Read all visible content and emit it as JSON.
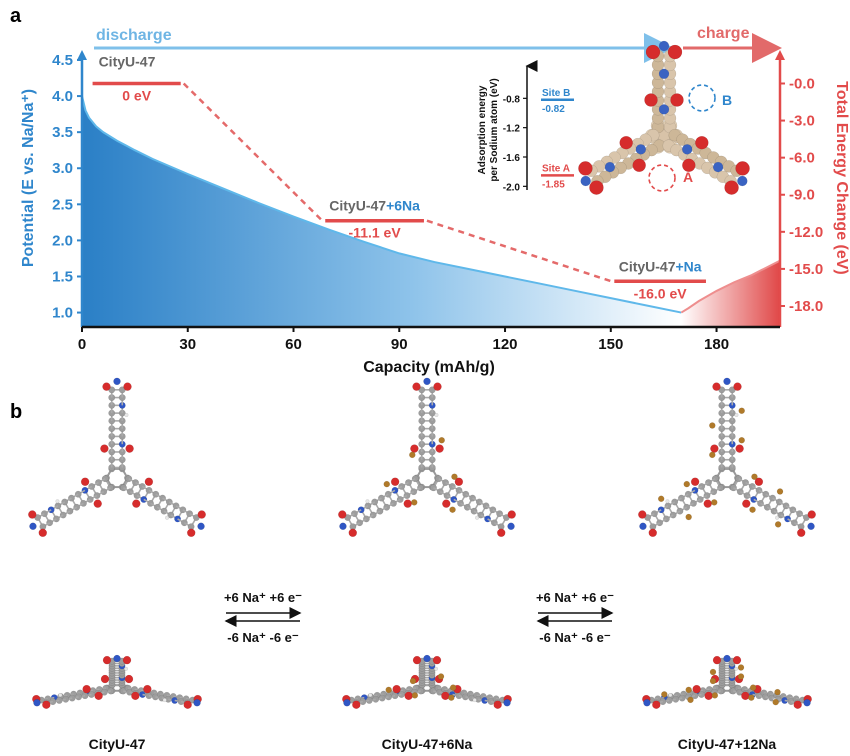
{
  "panels": {
    "a": "a",
    "b": "b"
  },
  "colors": {
    "blue": "#2f86cc",
    "lightblue": "#7fc0ea",
    "red": "#e24b4b",
    "gray": "#666666"
  },
  "chart_data": {
    "type": "area",
    "xlabel": "Capacity (mAh/g)",
    "ylabel_left": "Potential (E vs. Na/Na⁺)",
    "ylabel_right": "Total Energy Change  (eV)",
    "xlim": [
      0,
      198
    ],
    "ylim_left": [
      0.8,
      4.5
    ],
    "ylim_right": [
      -19.7,
      1.9
    ],
    "xticks": [
      "0",
      "30",
      "60",
      "90",
      "120",
      "150",
      "180"
    ],
    "yticks_left": [
      "1.0",
      "1.5",
      "2.0",
      "2.5",
      "3.0",
      "3.5",
      "4.0",
      "4.5"
    ],
    "yticks_right": [
      "-0.0",
      "-3.0",
      "-6.0",
      "-9.0",
      "-12.0",
      "-15.0",
      "-18.0"
    ],
    "discharge_label": "discharge",
    "charge_label": "charge",
    "discharge": {
      "x": [
        0,
        1,
        2,
        4,
        6,
        10,
        15,
        20,
        30,
        40,
        50,
        60,
        70,
        80,
        90,
        100,
        110,
        120,
        130,
        140,
        150,
        160,
        170
      ],
      "y": [
        4.0,
        3.8,
        3.7,
        3.58,
        3.5,
        3.38,
        3.25,
        3.13,
        2.92,
        2.72,
        2.52,
        2.33,
        2.15,
        1.98,
        1.82,
        1.7,
        1.6,
        1.5,
        1.4,
        1.3,
        1.2,
        1.1,
        1.0
      ]
    },
    "charge": {
      "x": [
        170,
        172,
        175,
        180,
        185,
        190,
        198
      ],
      "y": [
        1.0,
        1.06,
        1.16,
        1.3,
        1.42,
        1.52,
        1.72
      ]
    },
    "energy_levels": [
      {
        "name": "CityU-47",
        "suffix": "",
        "value": 0.0,
        "label": "0 eV",
        "x": [
          3,
          28
        ]
      },
      {
        "name": "CityU-47",
        "suffix": "+6Na",
        "value": -11.1,
        "label": "-11.1 eV",
        "x": [
          69,
          97
        ]
      },
      {
        "name": "CityU-47",
        "suffix": "+Na",
        "value": -16.0,
        "label": "-16.0 eV",
        "x": [
          151,
          177
        ]
      }
    ],
    "inset": {
      "ylabel_line1": "Adsorption energy",
      "ylabel_line2": "per Sodium atom (eV)",
      "yticks": [
        "-0.8",
        "-1.2",
        "-1.6",
        "-2.0"
      ],
      "ylim": [
        -2.05,
        -0.55
      ],
      "sites": [
        {
          "name": "Site B",
          "value": -0.82,
          "label": "-0.82",
          "color": "#2f86cc"
        },
        {
          "name": "Site A",
          "value": -1.85,
          "label": "-1.85",
          "color": "#e24b4b"
        }
      ],
      "site_marks": {
        "a": "A",
        "b": "B"
      }
    }
  },
  "panel_b": {
    "reaction_forward": "+6 Na⁺ +6 e⁻",
    "reaction_backward": "-6 Na⁺ -6 e⁻",
    "captions": [
      "CityU-47",
      "CityU-47+6Na",
      "CityU-47+12Na"
    ]
  }
}
